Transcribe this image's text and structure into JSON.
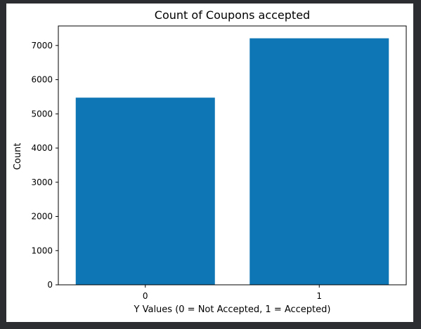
{
  "chart_data": {
    "type": "bar",
    "title": "Count of Coupons accepted",
    "xlabel": "Y Values (0 = Not Accepted, 1 = Accepted)",
    "ylabel": "Count",
    "categories": [
      "0",
      "1"
    ],
    "values": [
      5474,
      7210
    ],
    "ylim": [
      0,
      7571
    ],
    "yticks": [
      0,
      1000,
      2000,
      3000,
      4000,
      5000,
      6000,
      7000
    ],
    "bar_color": "#0e76b5",
    "grid": false,
    "legend": "none"
  }
}
